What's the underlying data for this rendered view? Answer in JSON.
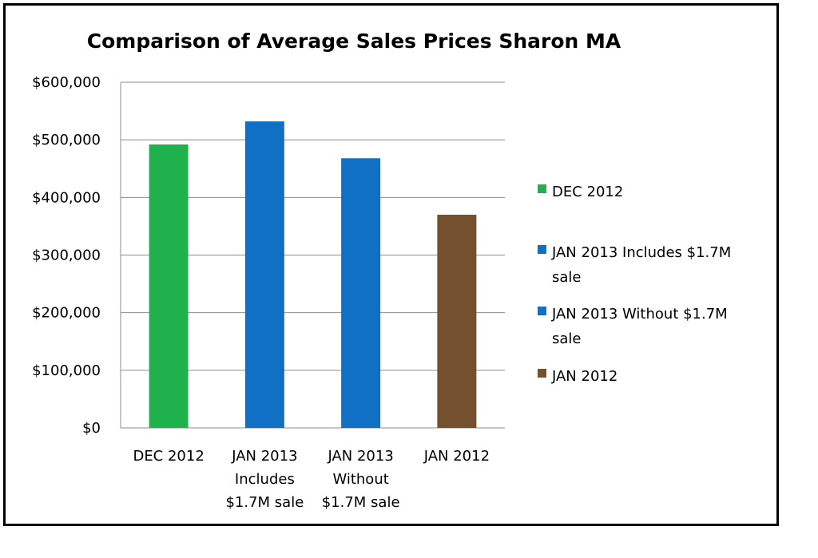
{
  "chart_data": {
    "type": "bar",
    "title": "Comparison of Average Sales Prices Sharon MA",
    "categories": [
      [
        "DEC 2012"
      ],
      [
        "JAN 2013",
        "Includes",
        "$1.7M sale"
      ],
      [
        "JAN 2013",
        "Without",
        "$1.7M sale"
      ],
      [
        "JAN 2012"
      ]
    ],
    "values": [
      492000,
      532000,
      468000,
      370000
    ],
    "colors": [
      "#1fb14c",
      "#1070c4",
      "#1070c4",
      "#75502f"
    ],
    "ylim": [
      0,
      600000
    ],
    "yticks": [
      0,
      100000,
      200000,
      300000,
      400000,
      500000,
      600000
    ],
    "ytick_labels": [
      "$0",
      "$100,000",
      "$200,000",
      "$300,000",
      "$400,000",
      "$500,000",
      "$600,000"
    ],
    "grid": true,
    "legend": {
      "placement": "right",
      "entries": [
        {
          "lines": [
            "DEC 2012"
          ],
          "color": "#1fb14c"
        },
        {
          "lines": [
            "JAN 2013 Includes $1.7M",
            "sale"
          ],
          "color": "#1070c4"
        },
        {
          "lines": [
            "JAN 2013 Without $1.7M",
            "sale"
          ],
          "color": "#1070c4"
        },
        {
          "lines": [
            "JAN 2012"
          ],
          "color": "#75502f"
        }
      ]
    }
  }
}
